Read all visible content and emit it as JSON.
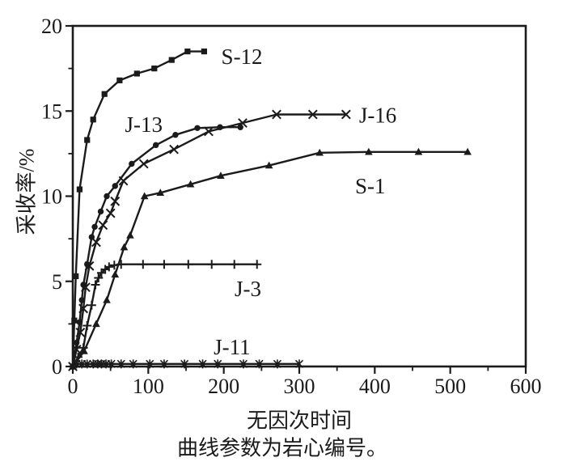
{
  "figure": {
    "background": "#ffffff",
    "ink_color": "#1b1b1b"
  },
  "chart_data": {
    "type": "line",
    "title": "",
    "xlabel": "无因次时间",
    "ylabel": "采收率/%",
    "caption": "曲线参数为岩心编号。",
    "xlim": [
      0,
      600
    ],
    "ylim": [
      0,
      20
    ],
    "x_ticks": [
      0,
      100,
      200,
      300,
      400,
      500,
      600
    ],
    "y_ticks": [
      0,
      5,
      10,
      15,
      20
    ],
    "x_minor_step": 50,
    "y_minor_step": 2.5,
    "grid": false,
    "legend_position": "inline-labels",
    "series": [
      {
        "name": "S-12",
        "marker": "square",
        "label": {
          "text": "S-12",
          "x": 224,
          "y": 18.2
        },
        "points": [
          [
            0,
            0
          ],
          [
            2,
            2.7
          ],
          [
            4,
            5.3
          ],
          [
            9,
            10.4
          ],
          [
            19,
            13.3
          ],
          [
            27,
            14.5
          ],
          [
            42,
            16.0
          ],
          [
            62,
            16.8
          ],
          [
            85,
            17.2
          ],
          [
            108,
            17.5
          ],
          [
            131,
            18.0
          ],
          [
            152,
            18.5
          ],
          [
            174,
            18.5
          ]
        ]
      },
      {
        "name": "J-13",
        "marker": "circle",
        "label": {
          "text": "J-13",
          "x": 94,
          "y": 14.2
        },
        "points": [
          [
            0,
            0
          ],
          [
            5,
            1.4
          ],
          [
            9,
            2.6
          ],
          [
            12,
            3.9
          ],
          [
            14,
            4.8
          ],
          [
            19,
            6.0
          ],
          [
            25,
            7.6
          ],
          [
            29,
            8.2
          ],
          [
            37,
            9.1
          ],
          [
            45,
            10.0
          ],
          [
            56,
            10.6
          ],
          [
            78,
            11.9
          ],
          [
            110,
            13.0
          ],
          [
            136,
            13.6
          ],
          [
            165,
            14.0
          ],
          [
            195,
            14.05
          ],
          [
            222,
            14.05
          ]
        ]
      },
      {
        "name": "J-16",
        "marker": "x",
        "label": {
          "text": "J-16",
          "x": 404,
          "y": 14.75
        },
        "points": [
          [
            0,
            0
          ],
          [
            5,
            1.0
          ],
          [
            10,
            2.0
          ],
          [
            14,
            3.4
          ],
          [
            17,
            4.65
          ],
          [
            22,
            5.9
          ],
          [
            31,
            7.3
          ],
          [
            40,
            8.3
          ],
          [
            50,
            9.0
          ],
          [
            56,
            9.7
          ],
          [
            67,
            10.9
          ],
          [
            94,
            11.9
          ],
          [
            134,
            12.75
          ],
          [
            180,
            13.8
          ],
          [
            225,
            14.3
          ],
          [
            270,
            14.8
          ],
          [
            318,
            14.8
          ],
          [
            362,
            14.8
          ]
        ]
      },
      {
        "name": "S-1",
        "marker": "triangle",
        "label": {
          "text": "S-1",
          "x": 394,
          "y": 10.6
        },
        "points": [
          [
            0,
            0
          ],
          [
            15,
            0.9
          ],
          [
            31,
            2.5
          ],
          [
            45,
            3.9
          ],
          [
            56,
            5.4
          ],
          [
            68,
            7.0
          ],
          [
            76,
            7.7
          ],
          [
            95,
            10.0
          ],
          [
            116,
            10.2
          ],
          [
            156,
            10.7
          ],
          [
            196,
            11.2
          ],
          [
            260,
            11.8
          ],
          [
            327,
            12.55
          ],
          [
            392,
            12.6
          ],
          [
            458,
            12.6
          ],
          [
            523,
            12.6
          ]
        ]
      },
      {
        "name": "J-3",
        "marker": "plus",
        "label": {
          "text": "J-3",
          "x": 232,
          "y": 4.55
        },
        "points": [
          [
            0,
            0
          ],
          [
            7,
            0.55
          ],
          [
            14,
            1.1
          ],
          [
            19,
            2.4
          ],
          [
            25,
            3.6
          ],
          [
            30,
            4.8
          ],
          [
            34,
            5.2
          ],
          [
            38,
            5.5
          ],
          [
            43,
            5.7
          ],
          [
            48,
            5.85
          ],
          [
            55,
            5.95
          ],
          [
            64,
            6.0
          ],
          [
            93,
            6.0
          ],
          [
            121,
            6.0
          ],
          [
            153,
            6.0
          ],
          [
            184,
            6.0
          ],
          [
            214,
            6.0
          ],
          [
            244,
            6.0
          ]
        ]
      },
      {
        "name": "J-11",
        "marker": "asterisk",
        "label": {
          "text": "J-11",
          "x": 211,
          "y": 1.15
        },
        "points": [
          [
            5,
            0.15
          ],
          [
            12,
            0.15
          ],
          [
            19,
            0.15
          ],
          [
            27,
            0.15
          ],
          [
            33,
            0.15
          ],
          [
            38,
            0.15
          ],
          [
            44,
            0.15
          ],
          [
            51,
            0.15
          ],
          [
            64,
            0.15
          ],
          [
            80,
            0.15
          ],
          [
            102,
            0.15
          ],
          [
            121,
            0.15
          ],
          [
            148,
            0.15
          ],
          [
            172,
            0.15
          ],
          [
            192,
            0.15
          ],
          [
            226,
            0.15
          ],
          [
            247,
            0.15
          ],
          [
            271,
            0.15
          ],
          [
            300,
            0.15
          ]
        ]
      }
    ]
  }
}
